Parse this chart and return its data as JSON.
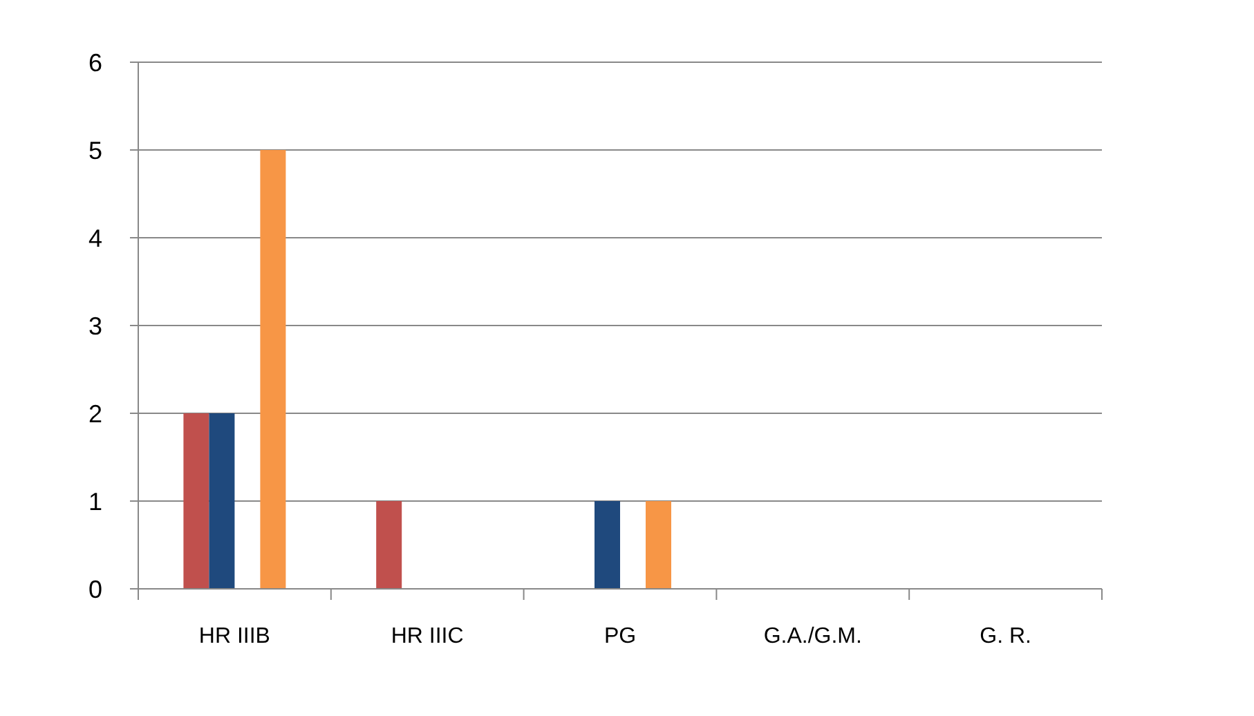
{
  "chart_data": {
    "type": "bar",
    "categories": [
      "HR IIIB",
      "HR IIIC",
      "PG",
      "G.A./G.M.",
      "G. R."
    ],
    "series": [
      {
        "color": "#c0504d",
        "values": [
          2,
          1,
          0,
          0,
          0
        ]
      },
      {
        "color": "#1f497d",
        "values": [
          2,
          0,
          1,
          0,
          0
        ]
      },
      {
        "color": "#9bbb59",
        "values": [
          0,
          0,
          0,
          0,
          0
        ]
      },
      {
        "color": "#f79646",
        "values": [
          5,
          0,
          1,
          0,
          0
        ]
      }
    ],
    "ylim": [
      0,
      6
    ],
    "yticks": [
      0,
      1,
      2,
      3,
      4,
      5,
      6
    ],
    "grid": "y"
  }
}
